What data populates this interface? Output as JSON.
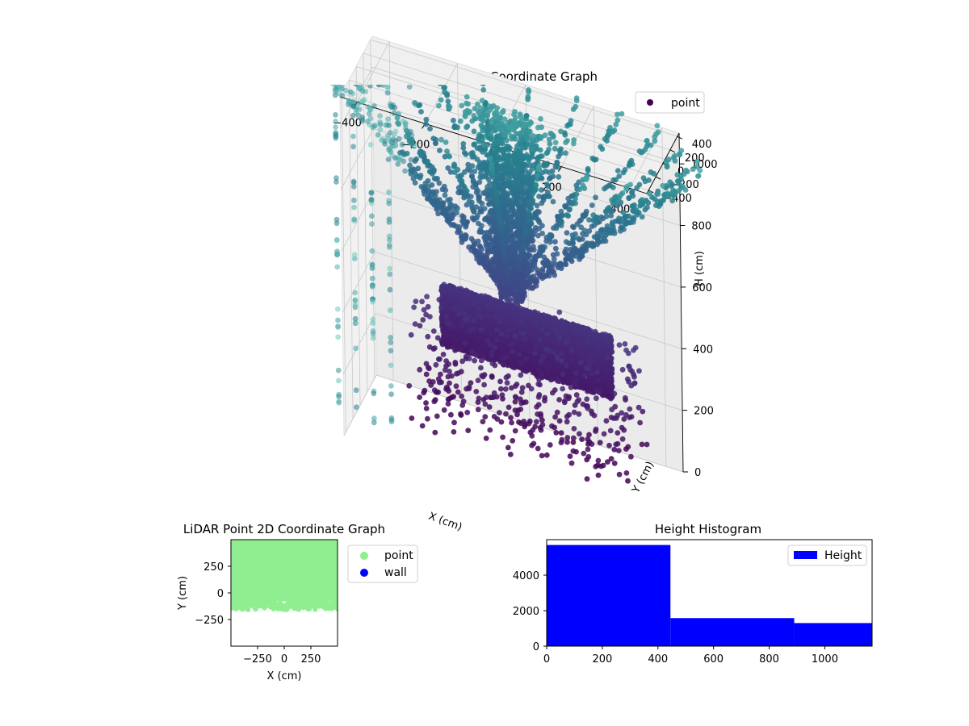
{
  "chart_data": [
    {
      "type": "scatter",
      "projection": "3d",
      "title": "LiDAR Point 3D Coordinate Graph",
      "xlabel": "X (cm)",
      "ylabel": "Y (cm)",
      "zlabel": "H (cm)",
      "x_ticks": [
        "−400",
        "−200",
        "0",
        "200",
        "400"
      ],
      "y_ticks": [
        "−400",
        "−200",
        "0",
        "200",
        "400"
      ],
      "z_ticks": [
        "0",
        "200",
        "400",
        "600",
        "800",
        "1000"
      ],
      "xlim": [
        -450,
        450
      ],
      "ylim": [
        -450,
        450
      ],
      "zlim": [
        0,
        1100
      ],
      "z_inverted": true,
      "colormap": "viridis",
      "grid": true,
      "legend": {
        "position": "top-right",
        "entries": [
          {
            "label": "point",
            "color": "#440154"
          }
        ]
      },
      "series": [
        {
          "name": "point",
          "components": [
            {
              "shape": "dense-wall-band",
              "x_range": [
                -250,
                250
              ],
              "y": 400,
              "z_range": [
                180,
                380
              ],
              "approx_points": 4500
            },
            {
              "shape": "scattered-upper-cloud",
              "x_range": [
                -300,
                350
              ],
              "y_range": [
                -100,
                450
              ],
              "z_range": [
                0,
                400
              ],
              "approx_points": 500
            },
            {
              "shape": "central-column",
              "x": 0,
              "y": 0,
              "z_range": [
                500,
                1100
              ],
              "approx_points": 1500
            },
            {
              "shape": "radial-lines",
              "count": 24,
              "z_range": [
                550,
                1100
              ],
              "approx_points": 1300
            },
            {
              "shape": "left-clipped-columns",
              "x_range": [
                -450,
                -300
              ],
              "z_range": [
                0,
                1100
              ],
              "approx_points": 120
            }
          ]
        }
      ]
    },
    {
      "type": "scatter",
      "title": "LiDAR Point 2D Coordinate Graph",
      "xlabel": "X (cm)",
      "ylabel": "Y (cm)",
      "x_ticks": [
        "−250",
        "0",
        "250"
      ],
      "y_ticks": [
        "250",
        "0",
        "−250"
      ],
      "xlim": [
        -500,
        500
      ],
      "ylim": [
        -500,
        500
      ],
      "legend": {
        "position": "outside-right",
        "entries": [
          {
            "label": "point",
            "color": "#90ee90"
          },
          {
            "label": "wall",
            "color": "#0000ff"
          }
        ]
      },
      "series": [
        {
          "name": "point",
          "color": "#90ee90",
          "region": {
            "x_range": [
              -500,
              500
            ],
            "y_range": [
              -150,
              500
            ],
            "bottom_edge_y": [
              -150,
              -100
            ]
          }
        },
        {
          "name": "wall",
          "color": "#0000ff",
          "points": []
        }
      ]
    },
    {
      "type": "bar",
      "subtype": "histogram",
      "title": "Height Histogram",
      "x_ticks": [
        "0",
        "200",
        "400",
        "600",
        "800",
        "1000"
      ],
      "y_ticks": [
        "0",
        "2000",
        "4000"
      ],
      "xlim": [
        0,
        1170
      ],
      "ylim": [
        0,
        6000
      ],
      "legend": {
        "position": "top-right",
        "entries": [
          {
            "label": "Height",
            "color": "#0000ff"
          }
        ]
      },
      "series": [
        {
          "name": "Height",
          "color": "#0000ff",
          "bins": [
            0,
            445,
            890,
            1170
          ],
          "values": [
            5700,
            1580,
            1300
          ]
        }
      ]
    }
  ]
}
